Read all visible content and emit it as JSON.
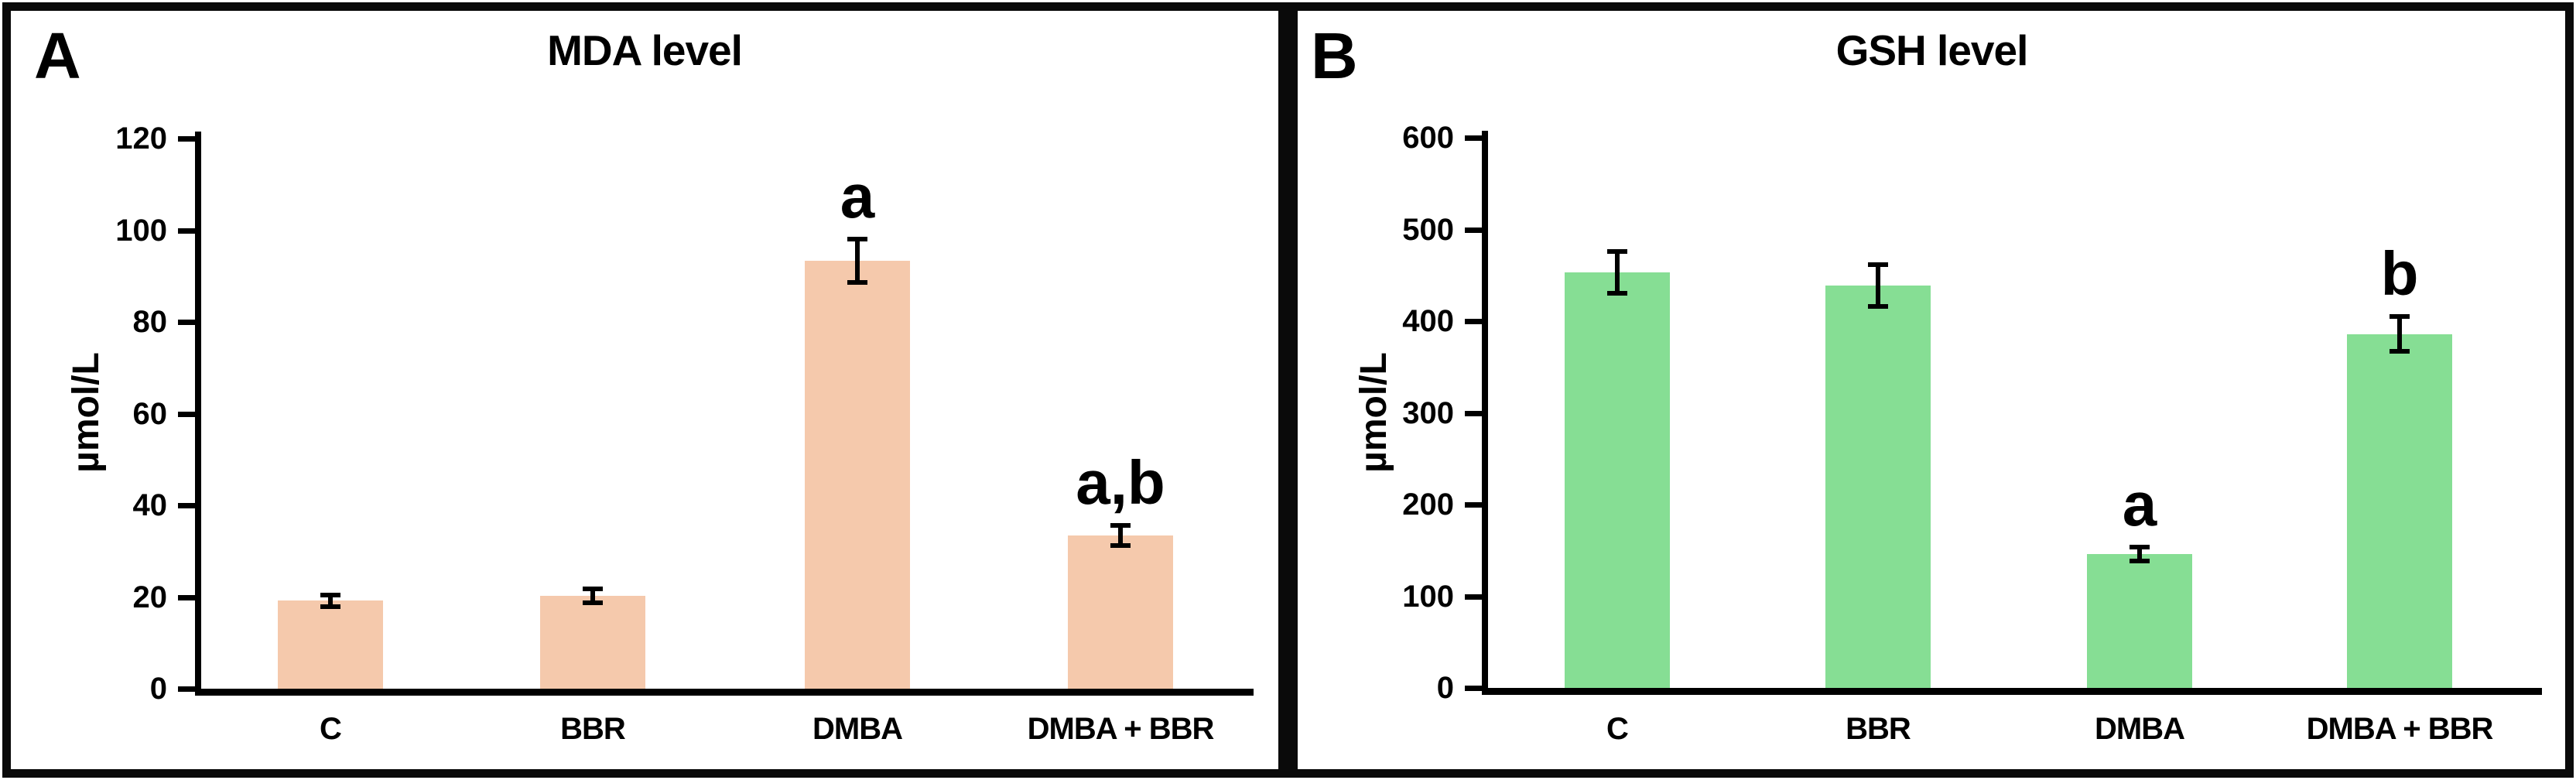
{
  "figure": {
    "background_color": "#ffffff",
    "border_color": "#0a0a0a"
  },
  "chart_data": [
    {
      "type": "bar",
      "panel_label": "A",
      "title": "MDA level",
      "ylabel": "µmol/L",
      "xlabel": "",
      "categories": [
        "C",
        "BBR",
        "DMBA",
        "DMBA + BBR"
      ],
      "values": [
        19.2,
        20.3,
        93.3,
        33.4
      ],
      "errors": [
        1.3,
        1.5,
        4.7,
        2.2
      ],
      "annotations": [
        "",
        "",
        "a",
        "a,b"
      ],
      "bar_color": "#F5C9AC",
      "ylim": [
        0,
        120
      ],
      "ytick_step": 20,
      "ytick_labels": [
        "0",
        "20",
        "40",
        "60",
        "80",
        "100",
        "120"
      ],
      "grid": false,
      "legend_position": "none"
    },
    {
      "type": "bar",
      "panel_label": "B",
      "title": "GSH level",
      "ylabel": "µmol/L",
      "xlabel": "",
      "categories": [
        "C",
        "BBR",
        "DMBA",
        "DMBA + BBR"
      ],
      "values": [
        453,
        439,
        146,
        386
      ],
      "errors": [
        23,
        23,
        8,
        19
      ],
      "annotations": [
        "",
        "",
        "a",
        "b"
      ],
      "bar_color": "#86DE94",
      "ylim": [
        0,
        600
      ],
      "ytick_step": 100,
      "ytick_labels": [
        "0",
        "100",
        "200",
        "300",
        "400",
        "500",
        "600"
      ],
      "grid": false,
      "legend_position": "none"
    }
  ]
}
